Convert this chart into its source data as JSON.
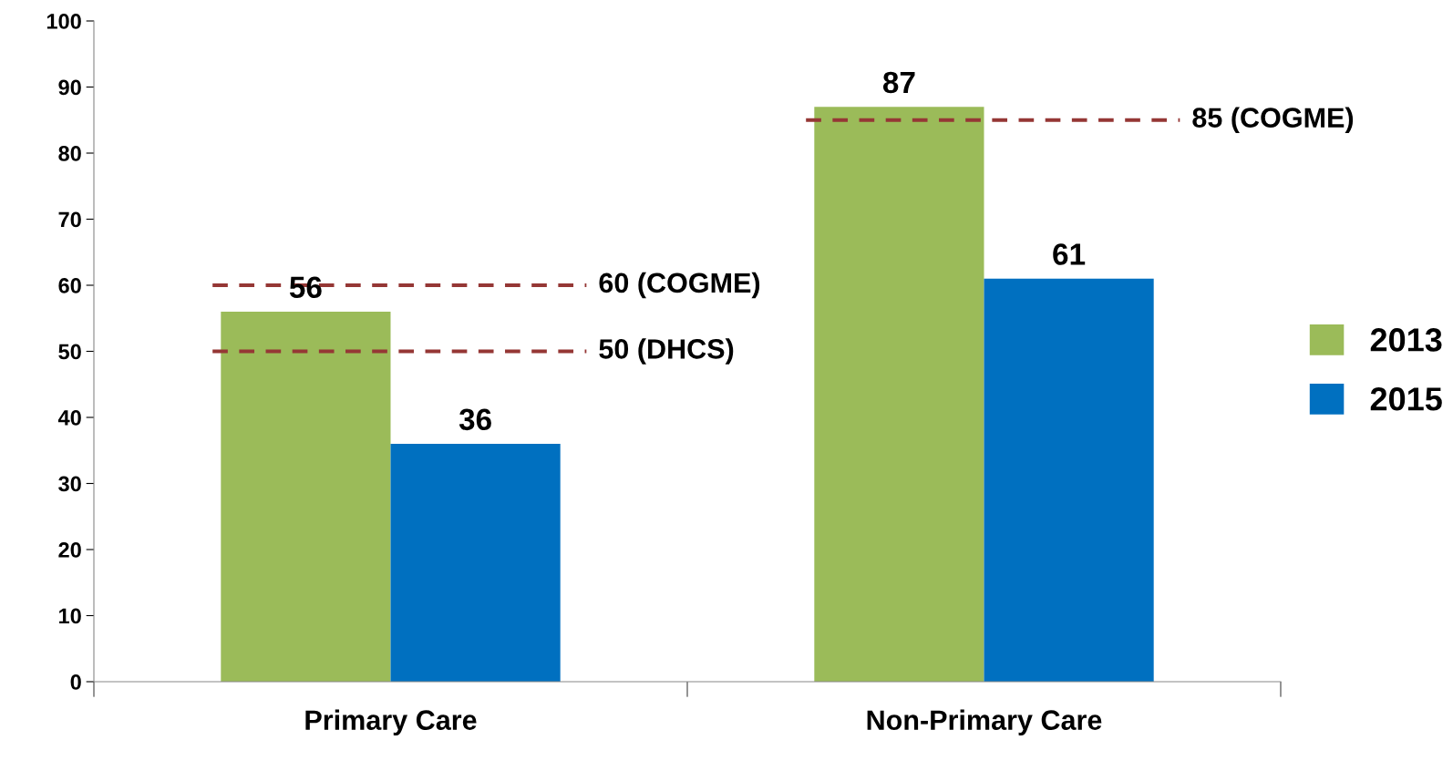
{
  "chart_data": {
    "type": "bar",
    "categories": [
      "Primary Care",
      "Non-Primary Care"
    ],
    "series": [
      {
        "name": "2013",
        "color": "#9bbb59",
        "values": [
          56,
          87
        ]
      },
      {
        "name": "2015",
        "color": "#0070c0",
        "values": [
          36,
          61
        ]
      }
    ],
    "ylim": [
      0,
      100
    ],
    "yticks": [
      0,
      10,
      20,
      30,
      40,
      50,
      60,
      70,
      80,
      90,
      100
    ],
    "grid": false,
    "legend": "right",
    "data_labels": true,
    "ref_lines": [
      {
        "axis": "y",
        "value": 60,
        "label": "60 (COGME)",
        "color": "#953735",
        "line_style": "dashed"
      },
      {
        "axis": "y",
        "value": 50,
        "label": "50 (DHCS)",
        "color": "#953735",
        "line_style": "dashed"
      },
      {
        "axis": "y",
        "value": 85,
        "label": "85 (COGME)",
        "color": "#953735",
        "line_style": "dashed"
      }
    ]
  }
}
